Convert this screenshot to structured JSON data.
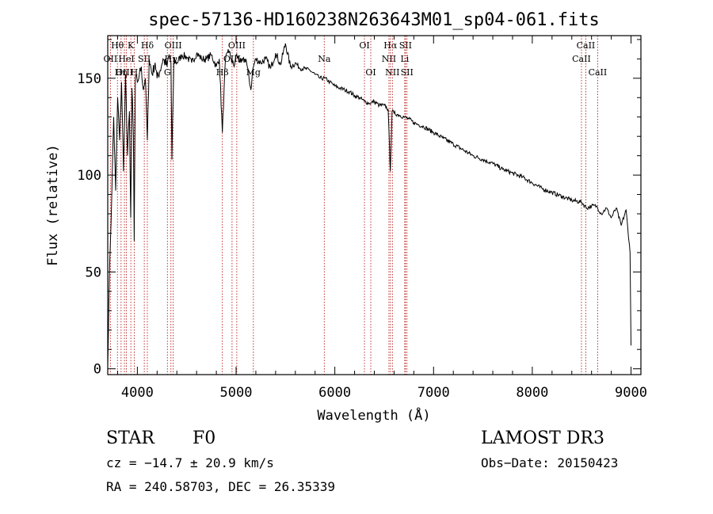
{
  "chart_data": {
    "type": "line",
    "title": "spec-57136-HD160238N263643M01_sp04-061.fits",
    "xlabel": "Wavelength (Å)",
    "ylabel": "Flux (relative)",
    "xlim": [
      3700,
      9100
    ],
    "ylim": [
      -3,
      172
    ],
    "x_ticks": [
      4000,
      5000,
      6000,
      7000,
      8000,
      9000
    ],
    "y_ticks": [
      0,
      50,
      100,
      150
    ],
    "series": [
      {
        "name": "spectrum",
        "x": [
          3700,
          3720,
          3740,
          3760,
          3780,
          3800,
          3820,
          3840,
          3860,
          3880,
          3900,
          3920,
          3933,
          3945,
          3960,
          3968,
          3980,
          4000,
          4020,
          4040,
          4060,
          4080,
          4101,
          4120,
          4150,
          4180,
          4200,
          4230,
          4260,
          4300,
          4320,
          4340,
          4350,
          4370,
          4400,
          4450,
          4500,
          4550,
          4600,
          4650,
          4700,
          4750,
          4800,
          4830,
          4861,
          4890,
          4920,
          4950,
          4980,
          5000,
          5050,
          5100,
          5150,
          5170,
          5200,
          5250,
          5300,
          5350,
          5400,
          5450,
          5500,
          5550,
          5600,
          5650,
          5700,
          5750,
          5800,
          5850,
          5900,
          5950,
          6000,
          6050,
          6100,
          6150,
          6200,
          6250,
          6300,
          6350,
          6400,
          6450,
          6500,
          6540,
          6562,
          6580,
          6600,
          6650,
          6700,
          6750,
          6800,
          6850,
          6900,
          7000,
          7100,
          7200,
          7300,
          7400,
          7500,
          7600,
          7700,
          7800,
          7900,
          8000,
          8100,
          8200,
          8300,
          8400,
          8500,
          8550,
          8600,
          8650,
          8700,
          8750,
          8800,
          8850,
          8900,
          8950,
          8990,
          9000
        ],
        "values": [
          2,
          55,
          88,
          130,
          92,
          140,
          118,
          148,
          102,
          152,
          110,
          133,
          78,
          145,
          120,
          66,
          150,
          148,
          152,
          156,
          144,
          150,
          118,
          160,
          152,
          158,
          150,
          154,
          160,
          156,
          162,
          158,
          108,
          160,
          158,
          162,
          161,
          158,
          163,
          160,
          160,
          162,
          156,
          160,
          122,
          158,
          165,
          160,
          156,
          162,
          158,
          160,
          144,
          155,
          160,
          158,
          160,
          155,
          163,
          157,
          168,
          156,
          158,
          155,
          155,
          154,
          152,
          150,
          150,
          148,
          146,
          145,
          144,
          143,
          141,
          140,
          138,
          137,
          138,
          136,
          136,
          134,
          102,
          133,
          132,
          131,
          130,
          129,
          127,
          126,
          125,
          122,
          119,
          116,
          113,
          110,
          108,
          106,
          103,
          101,
          99,
          96,
          93,
          91,
          89,
          87,
          86,
          83,
          84,
          84,
          80,
          83,
          78,
          83,
          74,
          82,
          60,
          12
        ]
      }
    ],
    "line_markers": [
      {
        "label": "Hθ",
        "x": 3798,
        "row": 1
      },
      {
        "label": "OII",
        "x": 3727,
        "row": 2
      },
      {
        "label": "OIII",
        "x": 3869,
        "row": 3
      },
      {
        "label": "Hη",
        "x": 3835,
        "row": 3
      },
      {
        "label": "HeI",
        "x": 3889,
        "row": 2
      },
      {
        "label": "K",
        "x": 3934,
        "row": 1
      },
      {
        "label": "H",
        "x": 3968,
        "row": 3
      },
      {
        "label": "SII",
        "x": 4070,
        "row": 2
      },
      {
        "label": "Hδ",
        "x": 4101,
        "row": 1
      },
      {
        "label": "OIII",
        "x": 4363,
        "row": 1
      },
      {
        "label": "Hγ",
        "x": 4340,
        "row": 2
      },
      {
        "label": "G",
        "x": 4304,
        "row": 3
      },
      {
        "label": "Hβ",
        "x": 4861,
        "row": 3
      },
      {
        "label": "OIII",
        "x": 5007,
        "row": 1
      },
      {
        "label": "OIII",
        "x": 4959,
        "row": 2
      },
      {
        "label": "Mg",
        "x": 5175,
        "row": 3
      },
      {
        "label": "Na",
        "x": 5893,
        "row": 2
      },
      {
        "label": "OI",
        "x": 6300,
        "row": 1
      },
      {
        "label": "OI",
        "x": 6364,
        "row": 3
      },
      {
        "label": "Hα",
        "x": 6563,
        "row": 1
      },
      {
        "label": "NII",
        "x": 6548,
        "row": 2
      },
      {
        "label": "NII",
        "x": 6583,
        "row": 3
      },
      {
        "label": "SII",
        "x": 6716,
        "row": 1
      },
      {
        "label": "Li",
        "x": 6708,
        "row": 2
      },
      {
        "label": "SII",
        "x": 6731,
        "row": 3
      },
      {
        "label": "CaII",
        "x": 8542,
        "row": 1
      },
      {
        "label": "CaII",
        "x": 8498,
        "row": 2
      },
      {
        "label": "CaII",
        "x": 8662,
        "row": 3
      }
    ],
    "colors": {
      "spectrum": "#000000",
      "line_markers": "#b00000",
      "axes": "#000000"
    }
  },
  "info": {
    "object_class": "STAR",
    "subclass": "F0",
    "survey": "LAMOST DR3",
    "cz": "cz = −14.7 ± 20.9 km/s",
    "obs_date": "Obs−Date: 20150423",
    "coords": "RA = 240.58703, DEC =  26.35339"
  }
}
